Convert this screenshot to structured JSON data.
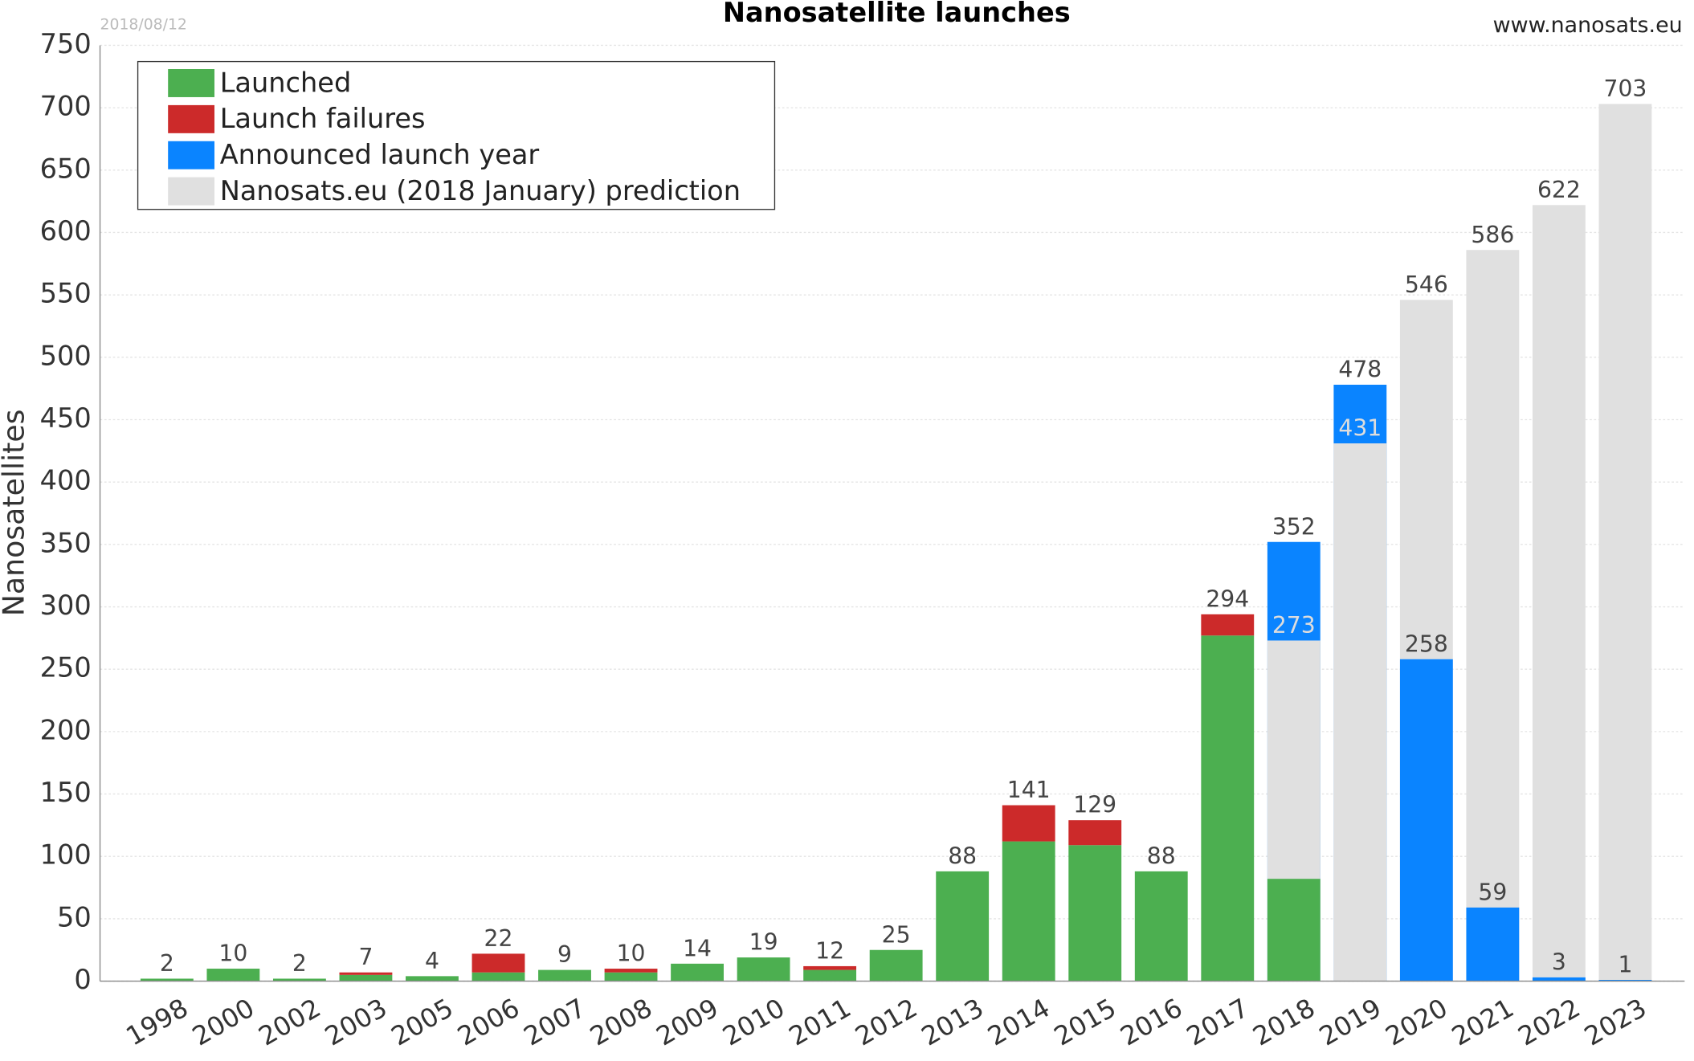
{
  "chart_data": {
    "type": "bar",
    "title": "Nanosatellite launches",
    "date": "2018/08/12",
    "source": "www.nanosats.eu",
    "y_label": "Nanosatellites",
    "categories": [
      "1998",
      "2000",
      "2002",
      "2003",
      "2005",
      "2006",
      "2007",
      "2008",
      "2009",
      "2010",
      "2011",
      "2012",
      "2013",
      "2014",
      "2015",
      "2016",
      "2017",
      "2018",
      "2019",
      "2020",
      "2021",
      "2022",
      "2023"
    ],
    "series": [
      {
        "name": "Launched",
        "color": "#4caf50",
        "stack": "launch",
        "values": [
          2,
          10,
          2,
          5,
          4,
          7,
          9,
          7,
          14,
          19,
          9,
          25,
          88,
          112,
          109,
          88,
          277,
          82,
          null,
          null,
          null,
          null,
          null
        ]
      },
      {
        "name": "Launch failures",
        "color": "#cc2a2a",
        "stack": "launch",
        "values": [
          null,
          null,
          null,
          2,
          null,
          15,
          null,
          3,
          null,
          null,
          3,
          null,
          null,
          29,
          20,
          null,
          17,
          null,
          null,
          null,
          null,
          null,
          null
        ]
      },
      {
        "name": "Announced launch year",
        "color": "#0a84ff",
        "stack": "overlap",
        "values": [
          null,
          null,
          null,
          null,
          null,
          null,
          null,
          null,
          null,
          null,
          null,
          null,
          null,
          null,
          null,
          null,
          null,
          352,
          478,
          258,
          59,
          3,
          1
        ]
      },
      {
        "name": "Nanosats.eu (2018 January) prediction",
        "color": "#e0e0e0",
        "stack": "overlap",
        "values": [
          null,
          null,
          null,
          null,
          null,
          null,
          null,
          null,
          null,
          null,
          null,
          null,
          null,
          null,
          null,
          null,
          null,
          273,
          431,
          546,
          586,
          622,
          703
        ]
      }
    ],
    "totals": [
      2,
      10,
      2,
      7,
      4,
      22,
      9,
      10,
      14,
      19,
      12,
      25,
      88,
      141,
      129,
      88,
      294,
      null,
      null,
      null,
      null,
      null,
      null
    ],
    "ylim": [
      0,
      750
    ],
    "yticks": [
      0,
      50,
      100,
      150,
      200,
      250,
      300,
      350,
      400,
      450,
      500,
      550,
      600,
      650,
      700,
      750
    ],
    "grid": true,
    "legend": "top-left"
  }
}
